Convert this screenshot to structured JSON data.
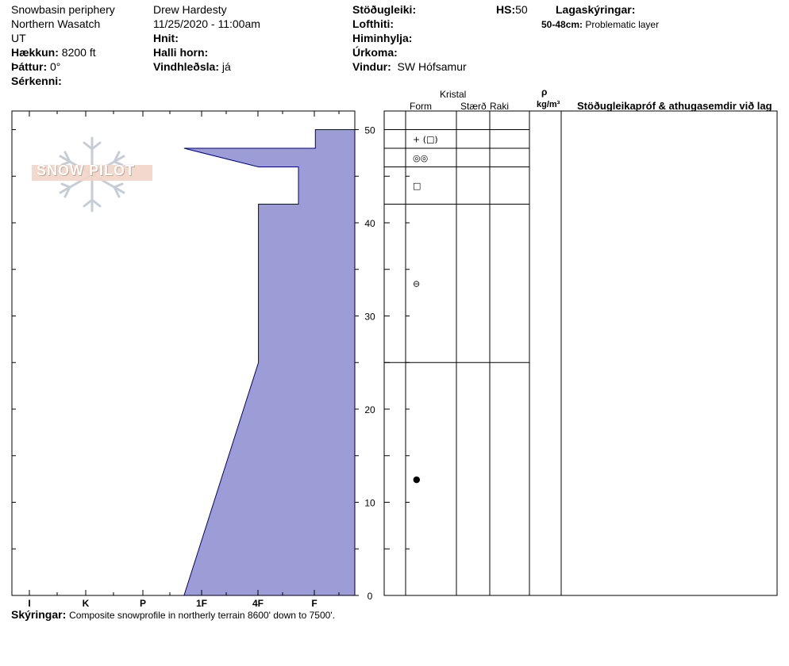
{
  "header": {
    "location": "Snowbasin periphery",
    "range": "Northern Wasatch",
    "state": "UT",
    "elevation_label": "Hækkun:",
    "elevation_value": "8200 ft",
    "aspect_label": "Þáttur:",
    "aspect_value": "0°",
    "specifics_label": "Sérkenni:",
    "observer": "Drew Hardesty",
    "datetime": "11/25/2020 - 11:00am",
    "coords_label": "Hnit:",
    "slope_label": "Halli horn:",
    "wind_loading_label": "Vindhleðsla:",
    "wind_loading_value": "já",
    "stability_label": "Stöðugleiki:",
    "air_temp_label": "Lofthiti:",
    "sky_label": "Himinhylja:",
    "precip_label": "Úrkoma:",
    "wind_label": "Vindur:",
    "wind_value": "SW Hófsamur",
    "hs_label": "HS:",
    "hs_value": "50",
    "layer_notes_label": "Lagaskýringar:",
    "layer_note_range": "50-48cm:",
    "layer_note_text": "Problematic layer"
  },
  "logo_text": "SNOW PILOT",
  "columns": {
    "crystal": "Kristal",
    "form": "Form",
    "size": "Stærð",
    "moisture": "Raki",
    "rho": "ρ",
    "density_unit": "kg/m³",
    "comments": "Stöðugleikapróf & athugasemdir við lag"
  },
  "footer": {
    "notes_label": "Skýringar:",
    "notes_text": "Composite snowprofile in northerly terrain 8600' down to 7500'."
  },
  "colors": {
    "hardness_fill": "#9c9cd6",
    "hardness_stroke": "#00008b",
    "line": "#000000"
  },
  "chart_data": {
    "type": "snow-profile",
    "y_ticks": [
      0,
      10,
      20,
      30,
      40,
      50
    ],
    "ylim": [
      0,
      52
    ],
    "hardness_labels": [
      "I",
      "K",
      "P",
      "1F",
      "4F",
      "F"
    ],
    "hardness_scale": [
      "F",
      "4F",
      "1F",
      "P",
      "K",
      "I"
    ],
    "layer_boundaries": [
      50,
      48,
      46,
      42,
      25
    ],
    "hardness_profile": [
      {
        "h": 52,
        "f": 0.0
      },
      {
        "h": 50,
        "f": 0.0
      },
      {
        "h": 50,
        "f": 0.7
      },
      {
        "h": 48,
        "f": 0.7
      },
      {
        "h": 48,
        "f": 3.03
      },
      {
        "h": 46,
        "f": 1.71
      },
      {
        "h": 46,
        "f": 1.0
      },
      {
        "h": 42,
        "f": 1.0
      },
      {
        "h": 42,
        "f": 1.71
      },
      {
        "h": 25,
        "f": 1.71
      },
      {
        "h": 0,
        "f": 3.03
      },
      {
        "h": 0,
        "f": 0.0
      }
    ],
    "grain_symbols": [
      {
        "h": 49,
        "symbol": "+ (□)"
      },
      {
        "h": 47,
        "symbol": "◎◎"
      },
      {
        "h": 44,
        "symbol": "□"
      },
      {
        "h": 33.5,
        "symbol": "⊖"
      },
      {
        "h": 12.5,
        "symbol": "●"
      }
    ]
  }
}
